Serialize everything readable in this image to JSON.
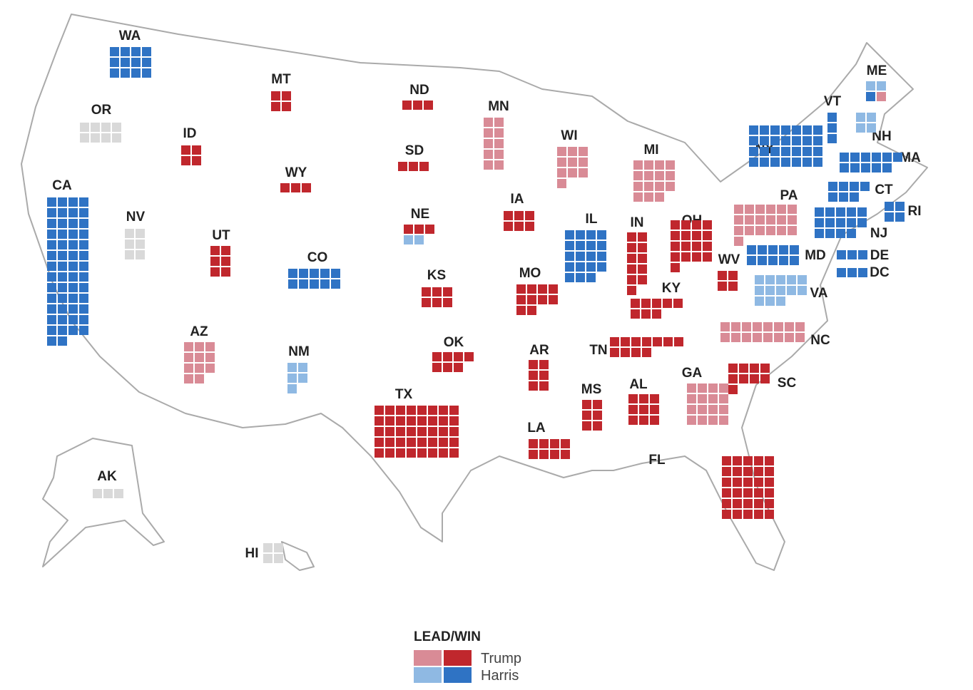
{
  "states": [
    {
      "label": "WA",
      "segments": [
        {
          "color": "#2f73c4",
          "votes": 12
        }
      ]
    },
    {
      "label": "OR",
      "segments": [
        {
          "color": "#d9d9d9",
          "votes": 8
        }
      ]
    },
    {
      "label": "CA",
      "segments": [
        {
          "color": "#2f73c4",
          "votes": 54
        }
      ]
    },
    {
      "label": "NV",
      "segments": [
        {
          "color": "#d9d9d9",
          "votes": 6
        }
      ]
    },
    {
      "label": "ID",
      "segments": [
        {
          "color": "#c0272d",
          "votes": 4
        }
      ]
    },
    {
      "label": "MT",
      "segments": [
        {
          "color": "#c0272d",
          "votes": 4
        }
      ]
    },
    {
      "label": "WY",
      "segments": [
        {
          "color": "#c0272d",
          "votes": 3
        }
      ]
    },
    {
      "label": "UT",
      "segments": [
        {
          "color": "#c0272d",
          "votes": 6
        }
      ]
    },
    {
      "label": "CO",
      "segments": [
        {
          "color": "#2f73c4",
          "votes": 10
        }
      ]
    },
    {
      "label": "AZ",
      "segments": [
        {
          "color": "#d98b96",
          "votes": 11
        }
      ]
    },
    {
      "label": "NM",
      "segments": [
        {
          "color": "#8fb9e3",
          "votes": 5
        }
      ]
    },
    {
      "label": "ND",
      "segments": [
        {
          "color": "#c0272d",
          "votes": 3
        }
      ]
    },
    {
      "label": "SD",
      "segments": [
        {
          "color": "#c0272d",
          "votes": 3
        }
      ]
    },
    {
      "label": "NE",
      "segments": [
        {
          "color": "#c0272d",
          "votes": 3
        },
        {
          "color": "#8fb9e3",
          "votes": 2
        }
      ]
    },
    {
      "label": "KS",
      "segments": [
        {
          "color": "#c0272d",
          "votes": 6
        }
      ]
    },
    {
      "label": "OK",
      "segments": [
        {
          "color": "#c0272d",
          "votes": 7
        }
      ]
    },
    {
      "label": "TX",
      "segments": [
        {
          "color": "#c0272d",
          "votes": 40
        }
      ]
    },
    {
      "label": "MN",
      "segments": [
        {
          "color": "#d98b96",
          "votes": 10
        }
      ]
    },
    {
      "label": "IA",
      "segments": [
        {
          "color": "#c0272d",
          "votes": 6
        }
      ]
    },
    {
      "label": "MO",
      "segments": [
        {
          "color": "#c0272d",
          "votes": 10
        }
      ]
    },
    {
      "label": "AR",
      "segments": [
        {
          "color": "#c0272d",
          "votes": 6
        }
      ]
    },
    {
      "label": "LA",
      "segments": [
        {
          "color": "#c0272d",
          "votes": 8
        }
      ]
    },
    {
      "label": "WI",
      "segments": [
        {
          "color": "#d98b96",
          "votes": 10
        }
      ]
    },
    {
      "label": "IL",
      "segments": [
        {
          "color": "#2f73c4",
          "votes": 19
        }
      ]
    },
    {
      "label": "MS",
      "segments": [
        {
          "color": "#c0272d",
          "votes": 6
        }
      ]
    },
    {
      "label": "MI",
      "segments": [
        {
          "color": "#d98b96",
          "votes": 15
        }
      ]
    },
    {
      "label": "IN",
      "segments": [
        {
          "color": "#c0272d",
          "votes": 11
        }
      ]
    },
    {
      "label": "KY",
      "segments": [
        {
          "color": "#c0272d",
          "votes": 8
        }
      ]
    },
    {
      "label": "TN",
      "segments": [
        {
          "color": "#c0272d",
          "votes": 11
        }
      ]
    },
    {
      "label": "AL",
      "segments": [
        {
          "color": "#c0272d",
          "votes": 9
        }
      ]
    },
    {
      "label": "GA",
      "segments": [
        {
          "color": "#d98b96",
          "votes": 16
        }
      ]
    },
    {
      "label": "FL",
      "segments": [
        {
          "color": "#c0272d",
          "votes": 30
        }
      ]
    },
    {
      "label": "SC",
      "segments": [
        {
          "color": "#c0272d",
          "votes": 9
        }
      ]
    },
    {
      "label": "NC",
      "segments": [
        {
          "color": "#d98b96",
          "votes": 16
        }
      ]
    },
    {
      "label": "OH",
      "segments": [
        {
          "color": "#c0272d",
          "votes": 17
        }
      ]
    },
    {
      "label": "WV",
      "segments": [
        {
          "color": "#c0272d",
          "votes": 4
        }
      ]
    },
    {
      "label": "VA",
      "segments": [
        {
          "color": "#8fb9e3",
          "votes": 13
        }
      ]
    },
    {
      "label": "PA",
      "segments": [
        {
          "color": "#d98b96",
          "votes": 19
        }
      ]
    },
    {
      "label": "MD",
      "segments": [
        {
          "color": "#2f73c4",
          "votes": 10
        }
      ]
    },
    {
      "label": "NY",
      "segments": [
        {
          "color": "#2f73c4",
          "votes": 28
        }
      ]
    },
    {
      "label": "NJ",
      "segments": [
        {
          "color": "#2f73c4",
          "votes": 14
        }
      ]
    },
    {
      "label": "DE",
      "segments": [
        {
          "color": "#2f73c4",
          "votes": 3
        }
      ]
    },
    {
      "label": "DC",
      "segments": [
        {
          "color": "#2f73c4",
          "votes": 3
        }
      ]
    },
    {
      "label": "VT",
      "segments": [
        {
          "color": "#2f73c4",
          "votes": 3
        }
      ]
    },
    {
      "label": "NH",
      "segments": [
        {
          "color": "#8fb9e3",
          "votes": 4
        }
      ]
    },
    {
      "label": "MA",
      "segments": [
        {
          "color": "#2f73c4",
          "votes": 11
        }
      ]
    },
    {
      "label": "CT",
      "segments": [
        {
          "color": "#2f73c4",
          "votes": 7
        }
      ]
    },
    {
      "label": "RI",
      "segments": [
        {
          "color": "#2f73c4",
          "votes": 4
        }
      ]
    },
    {
      "label": "ME",
      "segments": [
        {
          "color": "#8fb9e3",
          "votes": 2
        },
        {
          "color": "#2f73c4",
          "votes": 1
        },
        {
          "color": "#d98b96",
          "votes": 1
        }
      ]
    },
    {
      "label": "AK",
      "segments": [
        {
          "color": "#d9d9d9",
          "votes": 3
        }
      ]
    },
    {
      "label": "HI",
      "segments": [
        {
          "color": "#d9d9d9",
          "votes": 4
        }
      ]
    }
  ],
  "legend": {
    "title": "LEAD/WIN",
    "entries": [
      {
        "name": "Trump",
        "lead_color": "#d98b96",
        "win_color": "#c0272d"
      },
      {
        "name": "Harris",
        "lead_color": "#8fb9e3",
        "win_color": "#2f73c4"
      }
    ]
  }
}
